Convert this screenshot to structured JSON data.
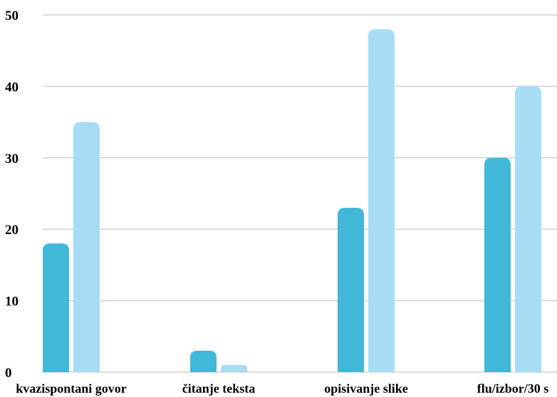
{
  "chart_data": {
    "type": "bar",
    "title": "",
    "xlabel": "",
    "ylabel": "",
    "categories": [
      "kvazispontani govor",
      "čitanje teksta",
      "opisivanje slike",
      "flu/izbor/30 s"
    ],
    "series": [
      {
        "values": [
          18,
          3,
          23,
          30
        ],
        "color": "#41b8d8"
      },
      {
        "values": [
          35,
          1,
          48,
          40
        ],
        "color": "#a6ddf5"
      }
    ],
    "ylim": [
      0,
      50
    ],
    "yticks": [
      0,
      10,
      20,
      30,
      40,
      50
    ],
    "grid": true,
    "legend": "none"
  }
}
